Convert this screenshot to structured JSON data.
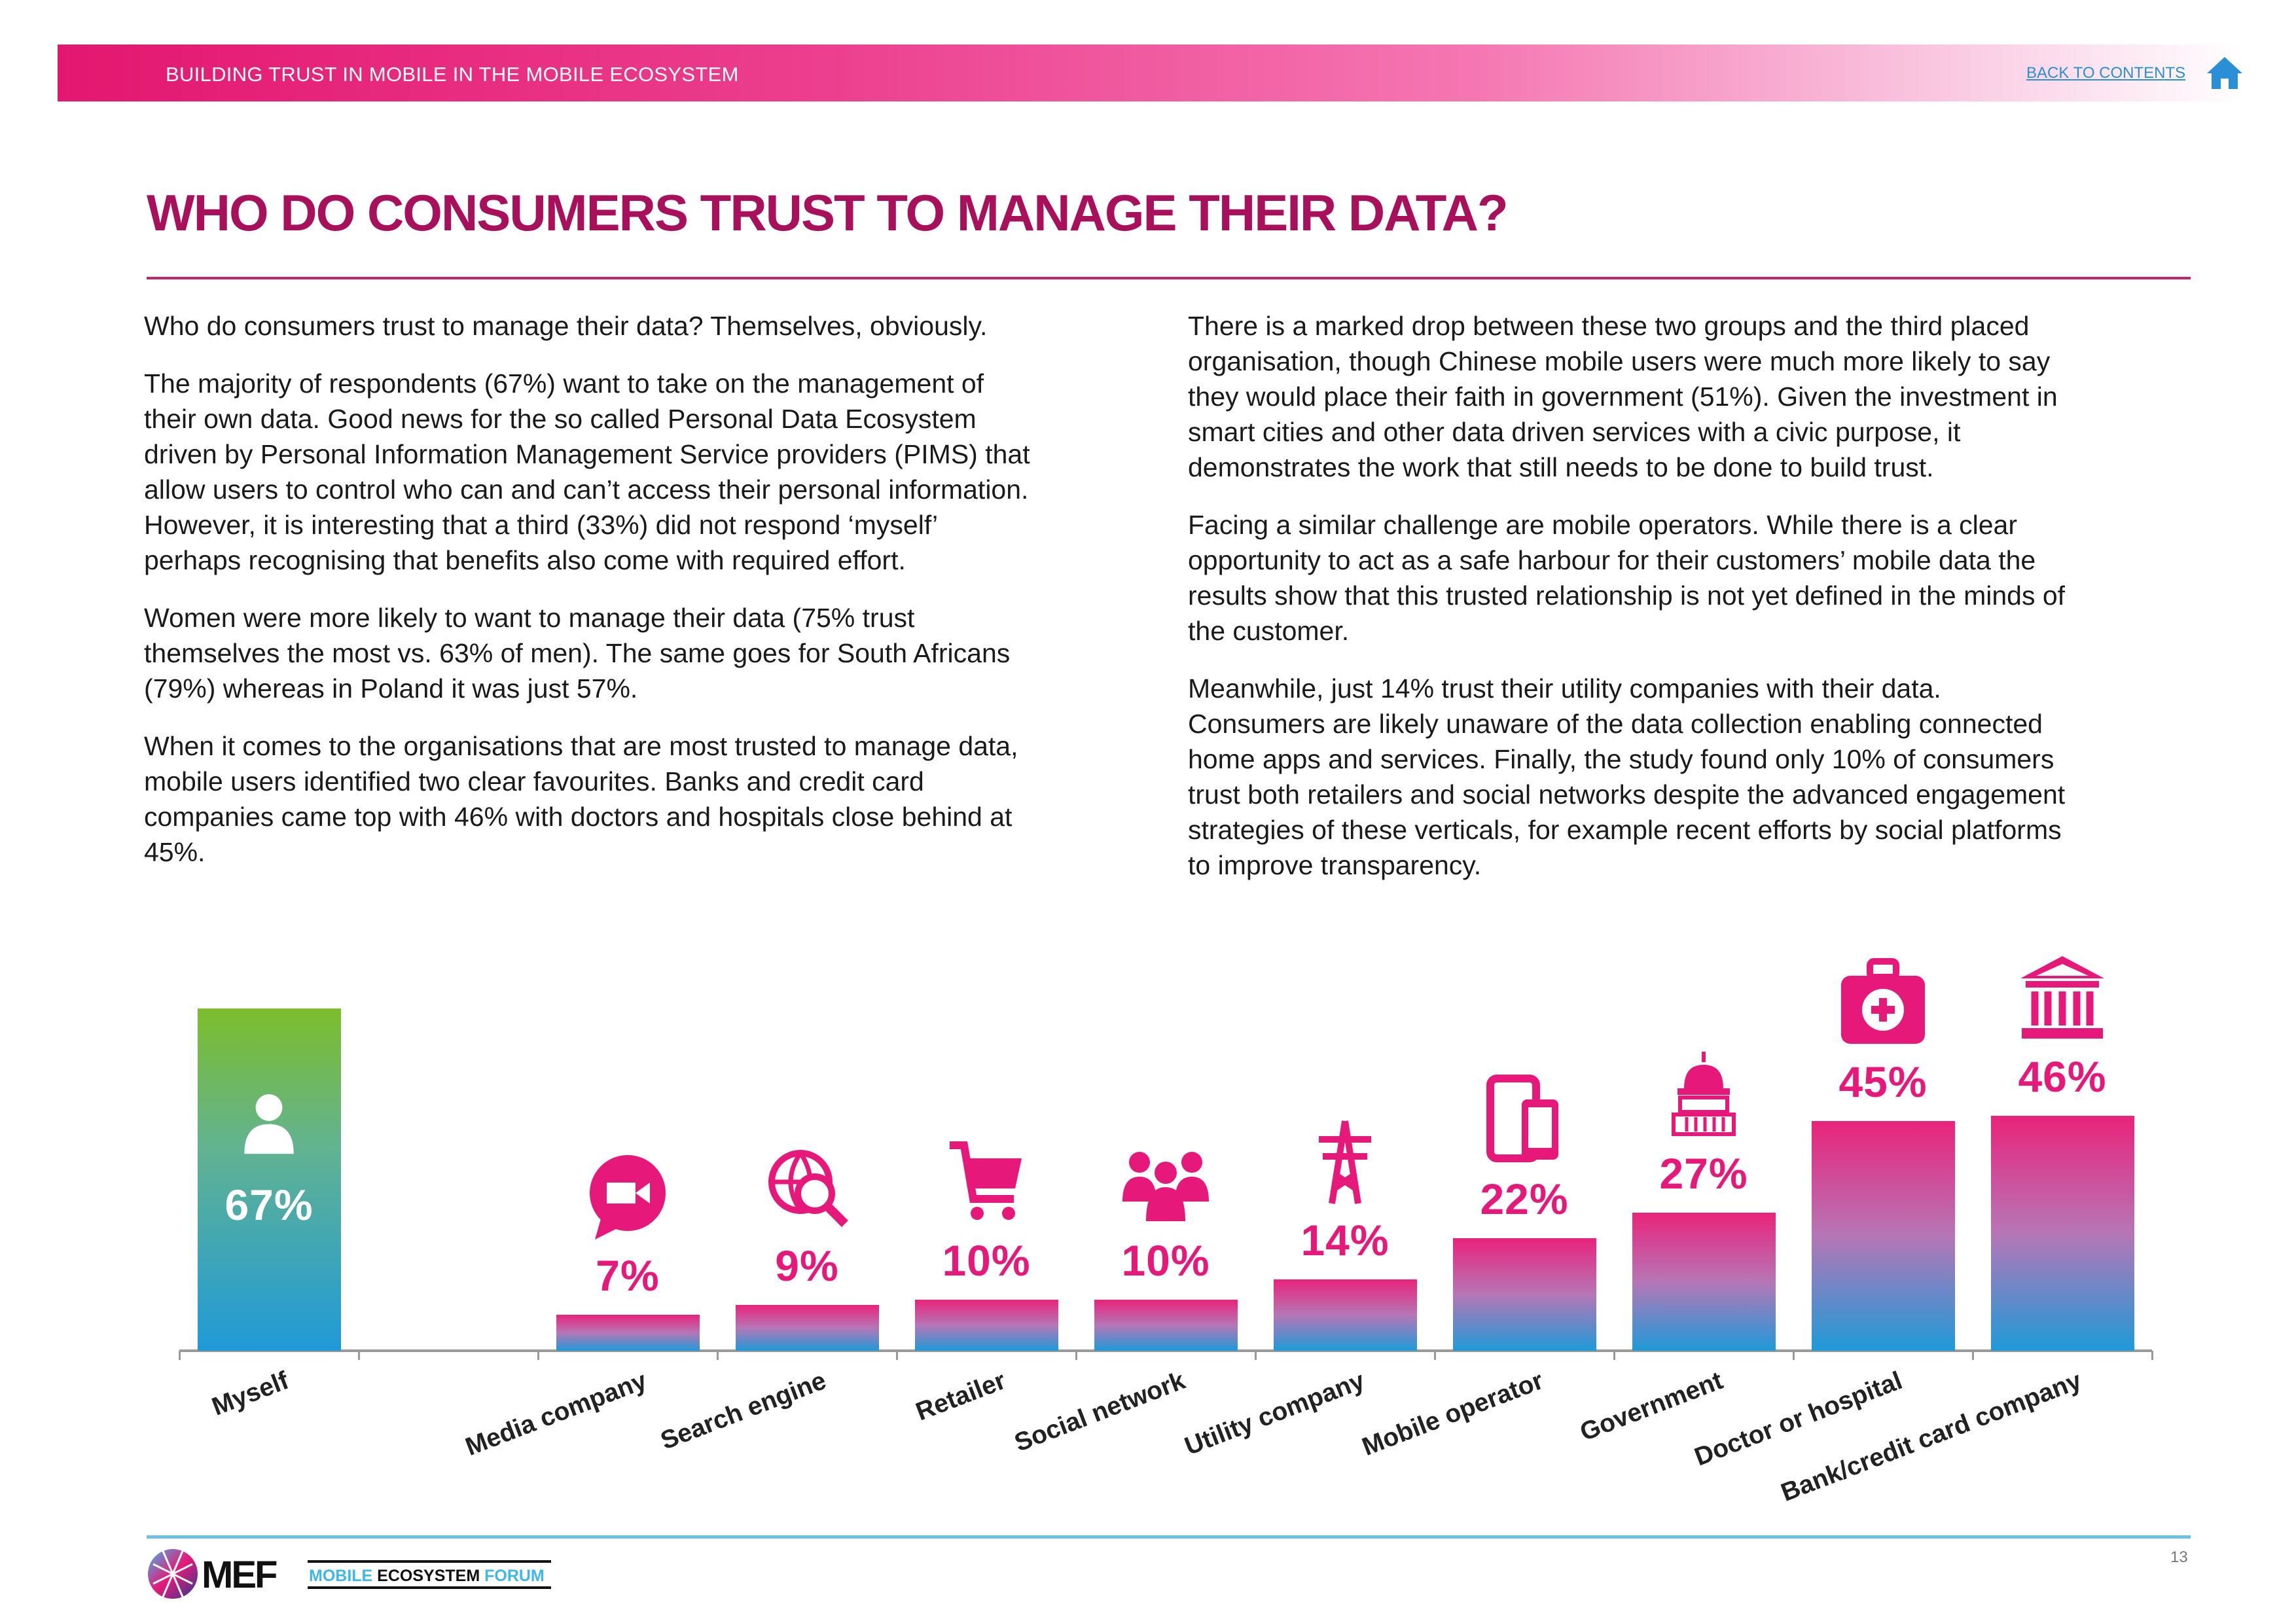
{
  "header": {
    "section_title": "BUILDING TRUST IN MOBILE IN THE MOBILE ECOSYSTEM",
    "back_link": "BACK TO CONTENTS",
    "home_icon": "home-icon",
    "accent_color": "#e3176f",
    "link_color": "#2a8fd6"
  },
  "page_title": "WHO DO CONSUMERS TRUST TO MANAGE THEIR DATA?",
  "left_column": [
    [
      "Who do consumers trust to manage their data? Themselves, obviously."
    ],
    [
      "The majority of respondents (67%) want to take on the management of",
      "their own data. Good news for the so called Personal Data Ecosystem",
      "driven by Personal Information Management Service providers (PIMS) that",
      "allow users to control who can and can’t access their personal information.",
      "However, it is interesting that a third (33%) did not respond ‘myself’",
      "perhaps recognising that benefits also come with required effort."
    ],
    [
      "Women were more likely to want to manage their data (75% trust",
      "themselves the most vs. 63% of men). The same goes for South Africans",
      "(79%) whereas in Poland it was just 57%."
    ],
    [
      "When it comes to the organisations that are most trusted to manage data,",
      "mobile users identified two clear favourites. Banks and credit card",
      "companies came top with 46% with doctors and hospitals close behind at",
      "45%."
    ]
  ],
  "right_column": [
    [
      "There is a marked drop between these two groups and the third placed",
      "organisation, though Chinese mobile users were much more likely to say",
      "they would place their faith in government (51%). Given the investment in",
      "smart cities and other data driven services with a civic purpose, it",
      "demonstrates the work that still needs to be done to build trust."
    ],
    [
      "Facing a similar challenge are mobile operators. While there is a clear",
      "opportunity to act as a safe harbour for their customers’ mobile data the",
      "results show that this trusted relationship is not yet defined in the minds of",
      "the customer."
    ],
    [
      "Meanwhile, just 14% trust their utility companies with their data.",
      "Consumers are likely unaware of the data collection enabling connected",
      "home apps and services. Finally, the study found only 10% of consumers",
      "trust both retailers and social networks despite the advanced engagement",
      "strategies of these verticals, for example recent efforts by social platforms",
      "to improve transparency."
    ]
  ],
  "chart_data": {
    "type": "bar",
    "title": "",
    "xlabel": "",
    "ylabel": "",
    "ylim": [
      0,
      67
    ],
    "grid": false,
    "categories": [
      "Myself",
      "Media company",
      "Search engine",
      "Retailer",
      "Social network",
      "Utility company",
      "Mobile operator",
      "Government",
      "Doctor or hospital",
      "Bank/credit card company"
    ],
    "values": [
      67,
      7,
      9,
      10,
      10,
      14,
      22,
      27,
      45,
      46
    ],
    "value_labels": [
      "67%",
      "7%",
      "9%",
      "10%",
      "10%",
      "14%",
      "22%",
      "27%",
      "45%",
      "46%"
    ],
    "icons": [
      "person-icon",
      "video-chat-icon",
      "globe-search-icon",
      "cart-icon",
      "group-icon",
      "pylon-icon",
      "devices-icon",
      "capitol-icon",
      "first-aid-kit-icon",
      "bank-icon"
    ],
    "colors": {
      "highlight_top": "#7cbd2b",
      "bar_top": "#e9237b",
      "bar_bottom": "#1f9ad8",
      "label": "#e6197a"
    }
  },
  "footer": {
    "logo_text": "MEF",
    "logo_subtitle": "MOBILE ECOSYSTEM FORUM",
    "page_number": "13"
  }
}
